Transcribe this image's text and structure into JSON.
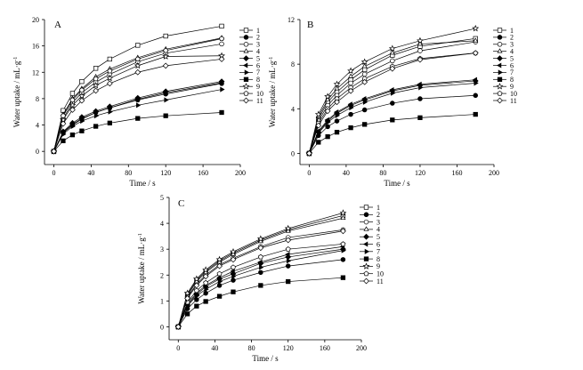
{
  "chart_data": [
    {
      "type": "line",
      "panel_label": "A",
      "xlabel": "Time / s",
      "ylabel": "Water uptake / mL·g",
      "ylabel_sup": "-1",
      "xlim": [
        -10,
        200
      ],
      "ylim": [
        -2,
        20
      ],
      "xticks": [
        0,
        40,
        80,
        120,
        160,
        200
      ],
      "yticks": [
        0,
        4,
        8,
        12,
        16,
        20
      ],
      "x": [
        0,
        10,
        20,
        30,
        45,
        60,
        90,
        120,
        180
      ],
      "series": [
        {
          "name": "1",
          "marker": "square-open",
          "values": [
            0,
            6.2,
            8.8,
            10.6,
            12.6,
            14.0,
            16.1,
            17.5,
            19.0
          ]
        },
        {
          "name": "2",
          "marker": "circle-filled",
          "values": [
            0,
            2.8,
            4.0,
            4.9,
            5.9,
            6.6,
            7.8,
            8.7,
            10.3
          ]
        },
        {
          "name": "3",
          "marker": "circle-open",
          "values": [
            0,
            5.0,
            7.4,
            8.9,
            10.5,
            11.7,
            13.6,
            14.9,
            16.3
          ]
        },
        {
          "name": "4",
          "marker": "triangle-open",
          "values": [
            0,
            5.6,
            8.0,
            9.5,
            11.3,
            12.5,
            14.2,
            15.5,
            17.2
          ]
        },
        {
          "name": "5",
          "marker": "diamond-filled",
          "values": [
            0,
            3.0,
            4.3,
            5.2,
            6.1,
            6.8,
            8.1,
            9.1,
            10.6
          ]
        },
        {
          "name": "6",
          "marker": "triangle-left-filled",
          "values": [
            0,
            2.9,
            4.1,
            5.0,
            5.9,
            6.6,
            7.9,
            8.9,
            10.4
          ]
        },
        {
          "name": "7",
          "marker": "triangle-right-filled",
          "values": [
            0,
            2.6,
            3.8,
            4.6,
            5.4,
            6.0,
            7.0,
            7.8,
            9.4
          ]
        },
        {
          "name": "8",
          "marker": "square-filled",
          "values": [
            0,
            1.6,
            2.5,
            3.1,
            3.8,
            4.3,
            5.0,
            5.4,
            5.9
          ]
        },
        {
          "name": "9",
          "marker": "star-open",
          "values": [
            0,
            4.8,
            7.0,
            8.4,
            10.0,
            11.1,
            13.0,
            14.4,
            14.5
          ]
        },
        {
          "name": "10",
          "marker": "pentagon-open",
          "values": [
            0,
            5.4,
            7.8,
            9.3,
            11.0,
            12.2,
            14.0,
            15.3,
            17.1
          ]
        },
        {
          "name": "11",
          "marker": "diamond-open",
          "values": [
            0,
            4.2,
            6.3,
            7.7,
            9.2,
            10.3,
            12.0,
            13.0,
            14.0
          ]
        }
      ]
    },
    {
      "type": "line",
      "panel_label": "B",
      "xlabel": "Time / s",
      "ylabel": "Water uptake / mL·g",
      "ylabel_sup": "-1",
      "xlim": [
        -10,
        200
      ],
      "ylim": [
        -1,
        12
      ],
      "xticks": [
        0,
        40,
        80,
        120,
        160,
        200
      ],
      "yticks": [
        0,
        4,
        8,
        12
      ],
      "x": [
        0,
        10,
        20,
        30,
        45,
        60,
        90,
        120,
        180
      ],
      "series": [
        {
          "name": "1",
          "marker": "square-open",
          "values": [
            0,
            3.1,
            4.6,
            5.5,
            6.6,
            7.5,
            8.8,
            9.6,
            10.3
          ]
        },
        {
          "name": "2",
          "marker": "circle-filled",
          "values": [
            0,
            1.6,
            2.4,
            2.9,
            3.5,
            3.9,
            4.5,
            4.9,
            5.2
          ]
        },
        {
          "name": "3",
          "marker": "circle-open",
          "values": [
            0,
            2.9,
            4.3,
            5.2,
            6.3,
            7.1,
            8.3,
            9.2,
            10.0
          ]
        },
        {
          "name": "4",
          "marker": "triangle-open",
          "values": [
            0,
            3.3,
            4.8,
            5.8,
            6.9,
            7.8,
            9.0,
            9.8,
            10.1
          ]
        },
        {
          "name": "5",
          "marker": "diamond-filled",
          "values": [
            0,
            1.9,
            2.9,
            3.6,
            4.3,
            4.8,
            5.6,
            6.1,
            6.5
          ]
        },
        {
          "name": "6",
          "marker": "triangle-left-filled",
          "values": [
            0,
            2.0,
            3.0,
            3.7,
            4.4,
            4.9,
            5.7,
            6.2,
            6.6
          ]
        },
        {
          "name": "7",
          "marker": "triangle-right-filled",
          "values": [
            0,
            1.8,
            2.8,
            3.4,
            4.1,
            4.6,
            5.4,
            5.9,
            6.3
          ]
        },
        {
          "name": "8",
          "marker": "square-filled",
          "values": [
            0,
            1.0,
            1.5,
            1.9,
            2.3,
            2.6,
            3.0,
            3.2,
            3.5
          ]
        },
        {
          "name": "9",
          "marker": "star-open",
          "values": [
            0,
            3.5,
            5.1,
            6.2,
            7.4,
            8.2,
            9.4,
            10.1,
            11.2
          ]
        },
        {
          "name": "10",
          "marker": "pentagon-open",
          "values": [
            0,
            2.7,
            4.0,
            4.9,
            5.9,
            6.7,
            7.8,
            8.5,
            9.0
          ]
        },
        {
          "name": "11",
          "marker": "diamond-open",
          "values": [
            0,
            2.5,
            3.8,
            4.6,
            5.6,
            6.4,
            7.6,
            8.4,
            9.0
          ]
        }
      ]
    },
    {
      "type": "line",
      "panel_label": "C",
      "xlabel": "Time / s",
      "ylabel": "Water uptake / mL·g",
      "ylabel_sup": "-1",
      "xlim": [
        -10,
        200
      ],
      "ylim": [
        -0.5,
        5
      ],
      "xticks": [
        0,
        40,
        80,
        120,
        160,
        200
      ],
      "yticks": [
        0,
        1,
        2,
        3,
        4,
        5
      ],
      "x": [
        0,
        10,
        20,
        30,
        45,
        60,
        90,
        120,
        180
      ],
      "series": [
        {
          "name": "1",
          "marker": "square-open",
          "values": [
            0,
            1.25,
            1.8,
            2.15,
            2.55,
            2.85,
            3.35,
            3.75,
            4.3
          ]
        },
        {
          "name": "2",
          "marker": "circle-filled",
          "values": [
            0,
            0.7,
            1.05,
            1.3,
            1.6,
            1.8,
            2.1,
            2.35,
            2.6
          ]
        },
        {
          "name": "3",
          "marker": "circle-open",
          "values": [
            0,
            1.15,
            1.65,
            2.0,
            2.4,
            2.65,
            3.1,
            3.45,
            3.75
          ]
        },
        {
          "name": "4",
          "marker": "triangle-open",
          "values": [
            0,
            1.2,
            1.75,
            2.1,
            2.5,
            2.8,
            3.3,
            3.7,
            4.2
          ]
        },
        {
          "name": "5",
          "marker": "diamond-filled",
          "values": [
            0,
            0.85,
            1.25,
            1.55,
            1.85,
            2.05,
            2.45,
            2.7,
            3.0
          ]
        },
        {
          "name": "6",
          "marker": "triangle-left-filled",
          "values": [
            0,
            0.9,
            1.3,
            1.6,
            1.9,
            2.15,
            2.5,
            2.8,
            3.1
          ]
        },
        {
          "name": "7",
          "marker": "triangle-right-filled",
          "values": [
            0,
            0.8,
            1.2,
            1.45,
            1.75,
            1.95,
            2.3,
            2.55,
            2.95
          ]
        },
        {
          "name": "8",
          "marker": "square-filled",
          "values": [
            0,
            0.5,
            0.8,
            0.98,
            1.18,
            1.35,
            1.6,
            1.75,
            1.9
          ]
        },
        {
          "name": "9",
          "marker": "star-open",
          "values": [
            0,
            1.3,
            1.85,
            2.2,
            2.6,
            2.9,
            3.4,
            3.8,
            4.4
          ]
        },
        {
          "name": "10",
          "marker": "pentagon-open",
          "values": [
            0,
            0.95,
            1.4,
            1.7,
            2.05,
            2.3,
            2.7,
            3.0,
            3.2
          ]
        },
        {
          "name": "11",
          "marker": "diamond-open",
          "values": [
            0,
            1.1,
            1.6,
            1.95,
            2.35,
            2.6,
            3.05,
            3.35,
            3.7
          ]
        }
      ]
    }
  ]
}
